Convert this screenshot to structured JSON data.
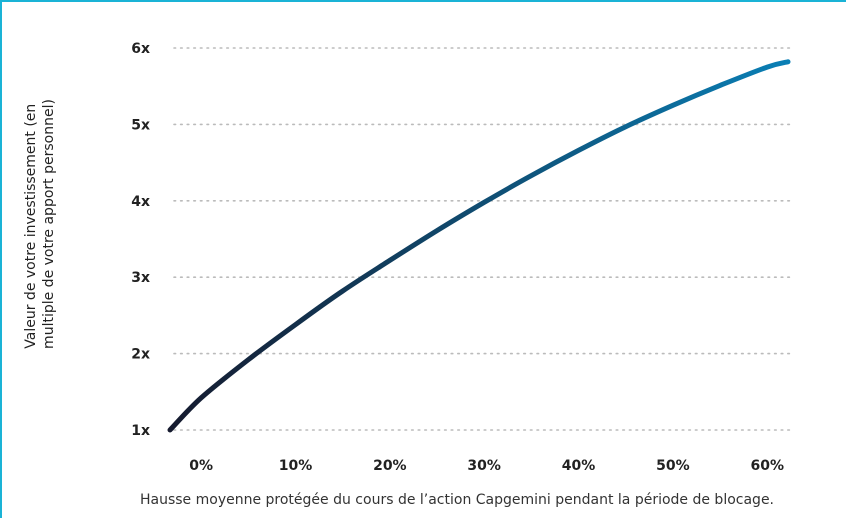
{
  "chart_data": {
    "type": "line",
    "title": "",
    "xlabel": "Hausse moyenne protégée du cours de l’action Capgemini pendant la période de blocage.",
    "ylabel_lines": [
      "Valeur de votre investissement (en",
      "multiple de votre apport personnel)"
    ],
    "x_ticks": [
      {
        "value": 0,
        "label": "0%"
      },
      {
        "value": 10,
        "label": "10%"
      },
      {
        "value": 20,
        "label": "20%"
      },
      {
        "value": 30,
        "label": "30%"
      },
      {
        "value": 40,
        "label": "40%"
      },
      {
        "value": 50,
        "label": "50%"
      },
      {
        "value": 60,
        "label": "60%"
      }
    ],
    "y_ticks": [
      {
        "value": 1,
        "label": "1x"
      },
      {
        "value": 2,
        "label": "2x"
      },
      {
        "value": 3,
        "label": "3x"
      },
      {
        "value": 4,
        "label": "4x"
      },
      {
        "value": 5,
        "label": "5x"
      },
      {
        "value": 6,
        "label": "6x"
      }
    ],
    "xlim": [
      -3.3,
      62.2
    ],
    "ylim": [
      1,
      6
    ],
    "grid": "horizontal dotted",
    "series": [
      {
        "x": [
          -3.3,
          0,
          5,
          10,
          15,
          20,
          25,
          30,
          35,
          40,
          45,
          50,
          55,
          60,
          62.2
        ],
        "y": [
          1.0,
          1.42,
          1.92,
          2.38,
          2.82,
          3.22,
          3.61,
          3.98,
          4.33,
          4.66,
          4.97,
          5.25,
          5.51,
          5.75,
          5.82
        ]
      }
    ],
    "colors": {
      "line_start": "#151a2e",
      "line_end": "#0a7fb5",
      "grid": "#bbbbbb",
      "frame": "#1ab3d6"
    }
  }
}
